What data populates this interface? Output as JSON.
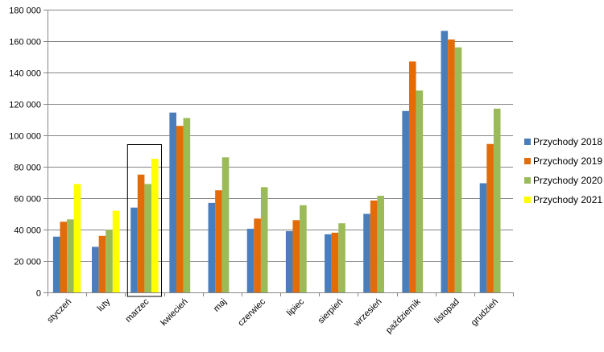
{
  "chart_data": {
    "type": "bar",
    "title": "",
    "xlabel": "",
    "ylabel": "",
    "ylim": [
      0,
      180000
    ],
    "yticks": [
      0,
      20000,
      40000,
      60000,
      80000,
      100000,
      120000,
      140000,
      160000,
      180000
    ],
    "ytick_labels": [
      "0",
      "20 000",
      "40 000",
      "60 000",
      "80 000",
      "100 000",
      "120 000",
      "140 000",
      "160 000",
      "180 000"
    ],
    "grid": true,
    "legend_position": "right",
    "highlighted_category": "marzec",
    "categories": [
      "styczeń",
      "luty",
      "marzec",
      "kwiecień",
      "maj",
      "czerwiec",
      "lipiec",
      "sierpień",
      "wrzesień",
      "październik",
      "listopad",
      "grudzień"
    ],
    "series": [
      {
        "name": "Przychody 2018",
        "color": "#4a7ebb",
        "values": [
          35500,
          29000,
          54000,
          114500,
          57000,
          40500,
          39000,
          37000,
          50000,
          115500,
          166500,
          69500
        ]
      },
      {
        "name": "Przychody 2019",
        "color": "#e36c09",
        "values": [
          45000,
          36000,
          75000,
          106000,
          65000,
          47000,
          46000,
          38000,
          58500,
          147000,
          161000,
          94500
        ]
      },
      {
        "name": "Przychody 2020",
        "color": "#9bbb59",
        "values": [
          46500,
          40000,
          69000,
          111000,
          86000,
          67000,
          55500,
          44000,
          61500,
          128500,
          156000,
          117000
        ]
      },
      {
        "name": "Przychody 2021",
        "color": "#ffff00",
        "values": [
          69000,
          52000,
          85000,
          null,
          null,
          null,
          null,
          null,
          null,
          null,
          null,
          null
        ]
      }
    ]
  }
}
